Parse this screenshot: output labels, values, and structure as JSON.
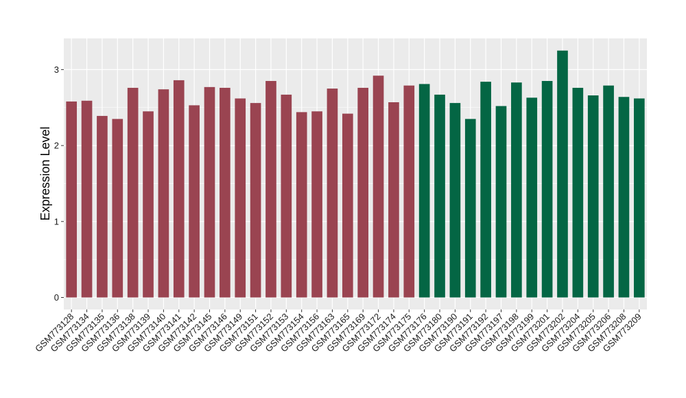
{
  "chart_data": {
    "type": "bar",
    "title": "",
    "xlabel": "",
    "ylabel": "Expression Level",
    "ylim": [
      -0.15,
      3.4
    ],
    "yticks": [
      0,
      1,
      2,
      3
    ],
    "grid": true,
    "legend": "none",
    "colors": {
      "group1": "#9A4451",
      "group2": "#046644",
      "panel": "#EBEBEB",
      "grid": "#FFFFFF"
    },
    "categories": [
      "GSM773128",
      "GSM773134",
      "GSM773135",
      "GSM773136",
      "GSM773138",
      "GSM773139",
      "GSM773140",
      "GSM773141",
      "GSM773142",
      "GSM773145",
      "GSM773146",
      "GSM773149",
      "GSM773151",
      "GSM773152",
      "GSM773153",
      "GSM773154",
      "GSM773156",
      "GSM773163",
      "GSM773165",
      "GSM773169",
      "GSM773172",
      "GSM773174",
      "GSM773175",
      "GSM773176",
      "GSM773180",
      "GSM773190",
      "GSM773191",
      "GSM773192",
      "GSM773197",
      "GSM773198",
      "GSM773199",
      "GSM773201",
      "GSM773202",
      "GSM773204",
      "GSM773205",
      "GSM773206",
      "GSM773208",
      "GSM773209"
    ],
    "values": [
      2.58,
      2.59,
      2.39,
      2.35,
      2.76,
      2.45,
      2.74,
      2.86,
      2.53,
      2.77,
      2.76,
      2.62,
      2.56,
      2.85,
      2.67,
      2.44,
      2.45,
      2.75,
      2.42,
      2.76,
      2.92,
      2.57,
      2.79,
      2.81,
      2.67,
      2.56,
      2.35,
      2.84,
      2.52,
      2.83,
      2.63,
      2.85,
      3.25,
      2.76,
      2.66,
      2.79,
      2.64,
      2.62
    ],
    "groups": [
      1,
      1,
      1,
      1,
      1,
      1,
      1,
      1,
      1,
      1,
      1,
      1,
      1,
      1,
      1,
      1,
      1,
      1,
      1,
      1,
      1,
      1,
      1,
      2,
      2,
      2,
      2,
      2,
      2,
      2,
      2,
      2,
      2,
      2,
      2,
      2,
      2,
      2
    ]
  }
}
